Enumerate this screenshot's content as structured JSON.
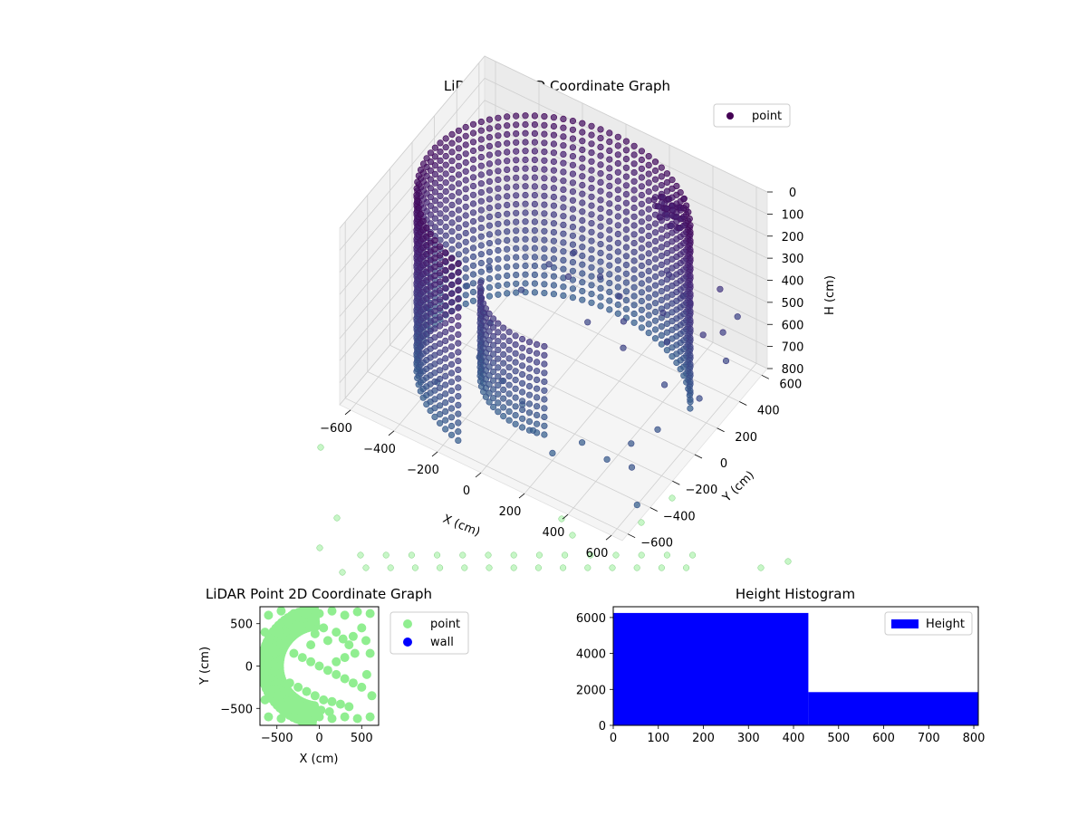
{
  "chart_data": [
    {
      "type": "scatter",
      "projection": "3d",
      "title": "LiDAR Point 3D Coordinate Graph",
      "xlabel": "X (cm)",
      "ylabel": "Y (cm)",
      "zlabel": "H (cm)",
      "xlim": [
        -650,
        650
      ],
      "ylim": [
        -650,
        650
      ],
      "zlim": [
        800,
        0
      ],
      "z_axis_inverted": true,
      "x_ticks": [
        -600,
        -400,
        -200,
        0,
        200,
        400,
        600
      ],
      "y_ticks": [
        -600,
        -400,
        -200,
        0,
        200,
        400,
        600
      ],
      "z_ticks": [
        0,
        100,
        200,
        300,
        400,
        500,
        600,
        700,
        800
      ],
      "x_tick_labels": [
        "−600",
        "−400",
        "−200",
        "0",
        "200",
        "400",
        "600"
      ],
      "y_tick_labels": [
        "−600",
        "−400",
        "−200",
        "0",
        "200",
        "400",
        "600"
      ],
      "z_tick_labels": [
        "0",
        "100",
        "200",
        "300",
        "400",
        "500",
        "600",
        "700",
        "800"
      ],
      "grid": true,
      "legend": {
        "position": "top-right",
        "entries": [
          {
            "label": "point",
            "color": "#440154"
          }
        ]
      },
      "colormap": "viridis",
      "description_of_data": "dense curved cylindrical wall of points from H 0 to 800 along an arc, plus scattered floor points",
      "series": [
        {
          "name": "point",
          "wall_arc": {
            "center": [
              0,
              0
            ],
            "radius": 560,
            "angle_start_deg": 25,
            "angle_end_deg": 255,
            "h_range": [
              0,
              800
            ],
            "h_step": 40,
            "angle_step_deg": 4
          },
          "inner_arc": {
            "center": [
              0,
              0
            ],
            "radius": 300,
            "angle_start_deg": 200,
            "angle_end_deg": 290,
            "h_range": [
              400,
              800
            ],
            "h_step": 40,
            "angle_step_deg": 6
          },
          "clump": {
            "x": 300,
            "y": 480,
            "h_range": [
              100,
              220
            ]
          },
          "scattered_points": [
            [
              -500,
              200,
              700
            ],
            [
              -450,
              300,
              650
            ],
            [
              -380,
              120,
              720
            ],
            [
              -300,
              -80,
              760
            ],
            [
              -250,
              200,
              600
            ],
            [
              -200,
              350,
              550
            ],
            [
              -120,
              420,
              500
            ],
            [
              -60,
              250,
              480
            ],
            [
              20,
              380,
              520
            ],
            [
              80,
              150,
              560
            ],
            [
              150,
              300,
              500
            ],
            [
              220,
              200,
              520
            ],
            [
              280,
              80,
              540
            ],
            [
              350,
              300,
              480
            ],
            [
              420,
              200,
              520
            ],
            [
              480,
              60,
              600
            ],
            [
              520,
              -80,
              700
            ],
            [
              560,
              250,
              450
            ],
            [
              600,
              350,
              480
            ],
            [
              620,
              100,
              620
            ],
            [
              -560,
              -120,
              780
            ],
            [
              -480,
              -260,
              800
            ],
            [
              -380,
              -300,
              780
            ],
            [
              -320,
              60,
              700
            ],
            [
              -160,
              -150,
              760
            ],
            [
              -40,
              -200,
              780
            ],
            [
              60,
              -300,
              790
            ],
            [
              180,
              -360,
              800
            ],
            [
              260,
              -250,
              780
            ],
            [
              400,
              -300,
              760
            ],
            [
              460,
              -200,
              720
            ],
            [
              540,
              -350,
              700
            ],
            [
              600,
              -420,
              800
            ],
            [
              300,
              450,
              420
            ],
            [
              380,
              420,
              460
            ],
            [
              450,
              350,
              420
            ],
            [
              520,
              480,
              400
            ],
            [
              580,
              520,
              520
            ],
            [
              640,
              300,
              560
            ],
            [
              -600,
              50,
              760
            ]
          ]
        }
      ],
      "ghost_points_color": "#90ee90"
    },
    {
      "type": "scatter",
      "title": "LiDAR Point 2D Coordinate Graph",
      "xlabel": "X (cm)",
      "ylabel": "Y (cm)",
      "xlim": [
        -700,
        700
      ],
      "ylim": [
        -700,
        700
      ],
      "x_ticks": [
        -500,
        0,
        500
      ],
      "y_ticks": [
        -500,
        0,
        500
      ],
      "x_tick_labels": [
        "−500",
        "0",
        "500"
      ],
      "y_tick_labels": [
        "−500",
        "0",
        "500"
      ],
      "legend": {
        "position": "outside-right",
        "entries": [
          {
            "label": "point",
            "color": "#90ee90"
          },
          {
            "label": "wall",
            "color": "#0000ff"
          }
        ]
      },
      "series": [
        {
          "name": "point",
          "color": "#90ee90",
          "outer_band": {
            "radius_inner": 470,
            "radius_outer": 700,
            "angle_start_deg": 95,
            "angle_end_deg": 265
          },
          "points": [
            [
              -600,
              600
            ],
            [
              -450,
              650
            ],
            [
              -300,
              620
            ],
            [
              -150,
              640
            ],
            [
              0,
              620
            ],
            [
              150,
              650
            ],
            [
              300,
              600
            ],
            [
              450,
              640
            ],
            [
              600,
              620
            ],
            [
              -640,
              400
            ],
            [
              -620,
              200
            ],
            [
              -640,
              0
            ],
            [
              -620,
              -200
            ],
            [
              -640,
              -400
            ],
            [
              -600,
              -600
            ],
            [
              -450,
              -620
            ],
            [
              -300,
              -600
            ],
            [
              -150,
              -620
            ],
            [
              0,
              -600
            ],
            [
              150,
              -620
            ],
            [
              300,
              -600
            ],
            [
              450,
              -620
            ],
            [
              600,
              -600
            ],
            [
              -300,
              150
            ],
            [
              -200,
              100
            ],
            [
              -100,
              50
            ],
            [
              0,
              0
            ],
            [
              100,
              -50
            ],
            [
              200,
              -100
            ],
            [
              300,
              -150
            ],
            [
              400,
              -200
            ],
            [
              500,
              -250
            ],
            [
              100,
              300
            ],
            [
              200,
              400
            ],
            [
              280,
              320
            ],
            [
              350,
              250
            ],
            [
              420,
              150
            ],
            [
              -100,
              250
            ],
            [
              -50,
              380
            ],
            [
              50,
              450
            ],
            [
              -350,
              -200
            ],
            [
              -250,
              -250
            ],
            [
              -150,
              -300
            ],
            [
              -50,
              -350
            ],
            [
              50,
              -400
            ],
            [
              150,
              -420
            ],
            [
              250,
              -450
            ],
            [
              350,
              -480
            ],
            [
              550,
              300
            ],
            [
              600,
              150
            ],
            [
              560,
              -100
            ],
            [
              620,
              -350
            ],
            [
              500,
              450
            ],
            [
              400,
              350
            ],
            [
              300,
              100
            ],
            [
              200,
              50
            ],
            [
              -500,
              -350
            ],
            [
              -450,
              -450
            ],
            [
              -380,
              -300
            ],
            [
              -280,
              -420
            ],
            [
              -180,
              -480
            ],
            [
              -80,
              -500
            ],
            [
              20,
              -520
            ],
            [
              120,
              -540
            ]
          ]
        },
        {
          "name": "wall",
          "color": "#0000ff",
          "points": []
        }
      ]
    },
    {
      "type": "bar",
      "subtype": "histogram",
      "title": "Height Histogram",
      "xlabel": "",
      "ylabel": "",
      "xlim": [
        0,
        810
      ],
      "ylim": [
        0,
        6600
      ],
      "x_ticks": [
        0,
        100,
        200,
        300,
        400,
        500,
        600,
        700,
        800
      ],
      "y_ticks": [
        0,
        2000,
        4000,
        6000
      ],
      "x_tick_labels": [
        "0",
        "100",
        "200",
        "300",
        "400",
        "500",
        "600",
        "700",
        "800"
      ],
      "y_tick_labels": [
        "0",
        "2000",
        "4000",
        "6000"
      ],
      "bins": [
        [
          0,
          433
        ],
        [
          433,
          810
        ]
      ],
      "values": [
        6250,
        1850
      ],
      "color": "#0000ff",
      "legend": {
        "position": "top-right",
        "entries": [
          {
            "label": "Height",
            "color": "#0000ff"
          }
        ]
      }
    }
  ]
}
